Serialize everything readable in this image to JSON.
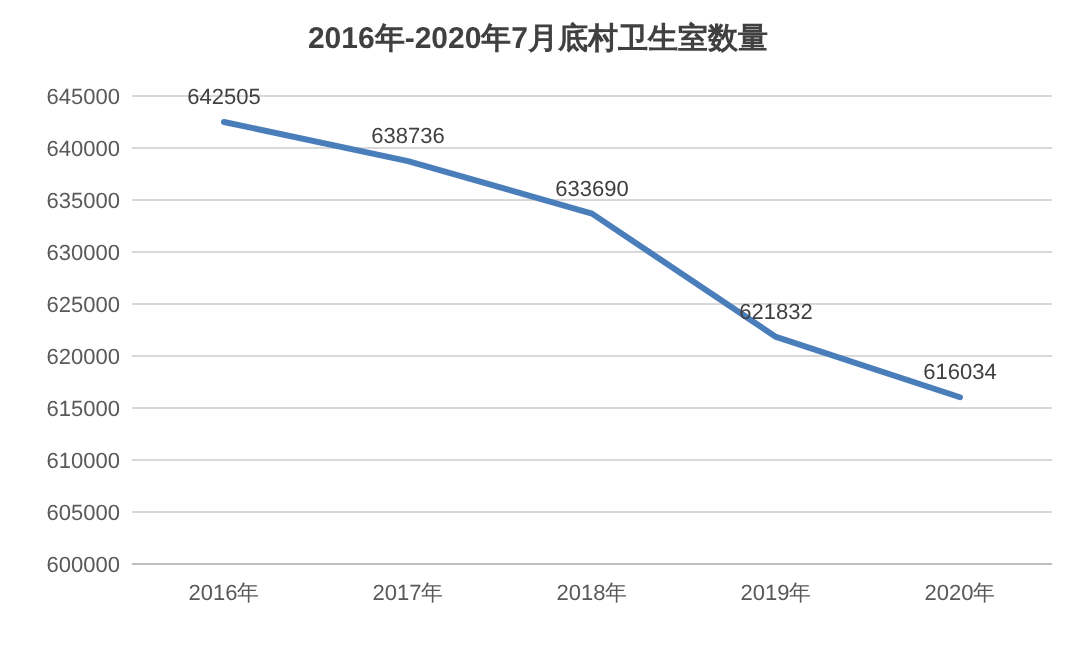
{
  "chart_data": {
    "type": "line",
    "title": "2016年-2020年7月底村卫生室数量",
    "categories": [
      "2016年",
      "2017年",
      "2018年",
      "2019年",
      "2020年"
    ],
    "values": [
      642505,
      638736,
      633690,
      621832,
      616034
    ],
    "color": "#4a7ebb",
    "ylim": [
      600000,
      645000
    ],
    "yticks": [
      600000,
      605000,
      610000,
      615000,
      620000,
      625000,
      630000,
      635000,
      640000,
      645000
    ],
    "grid": "y",
    "data_labels": true
  }
}
